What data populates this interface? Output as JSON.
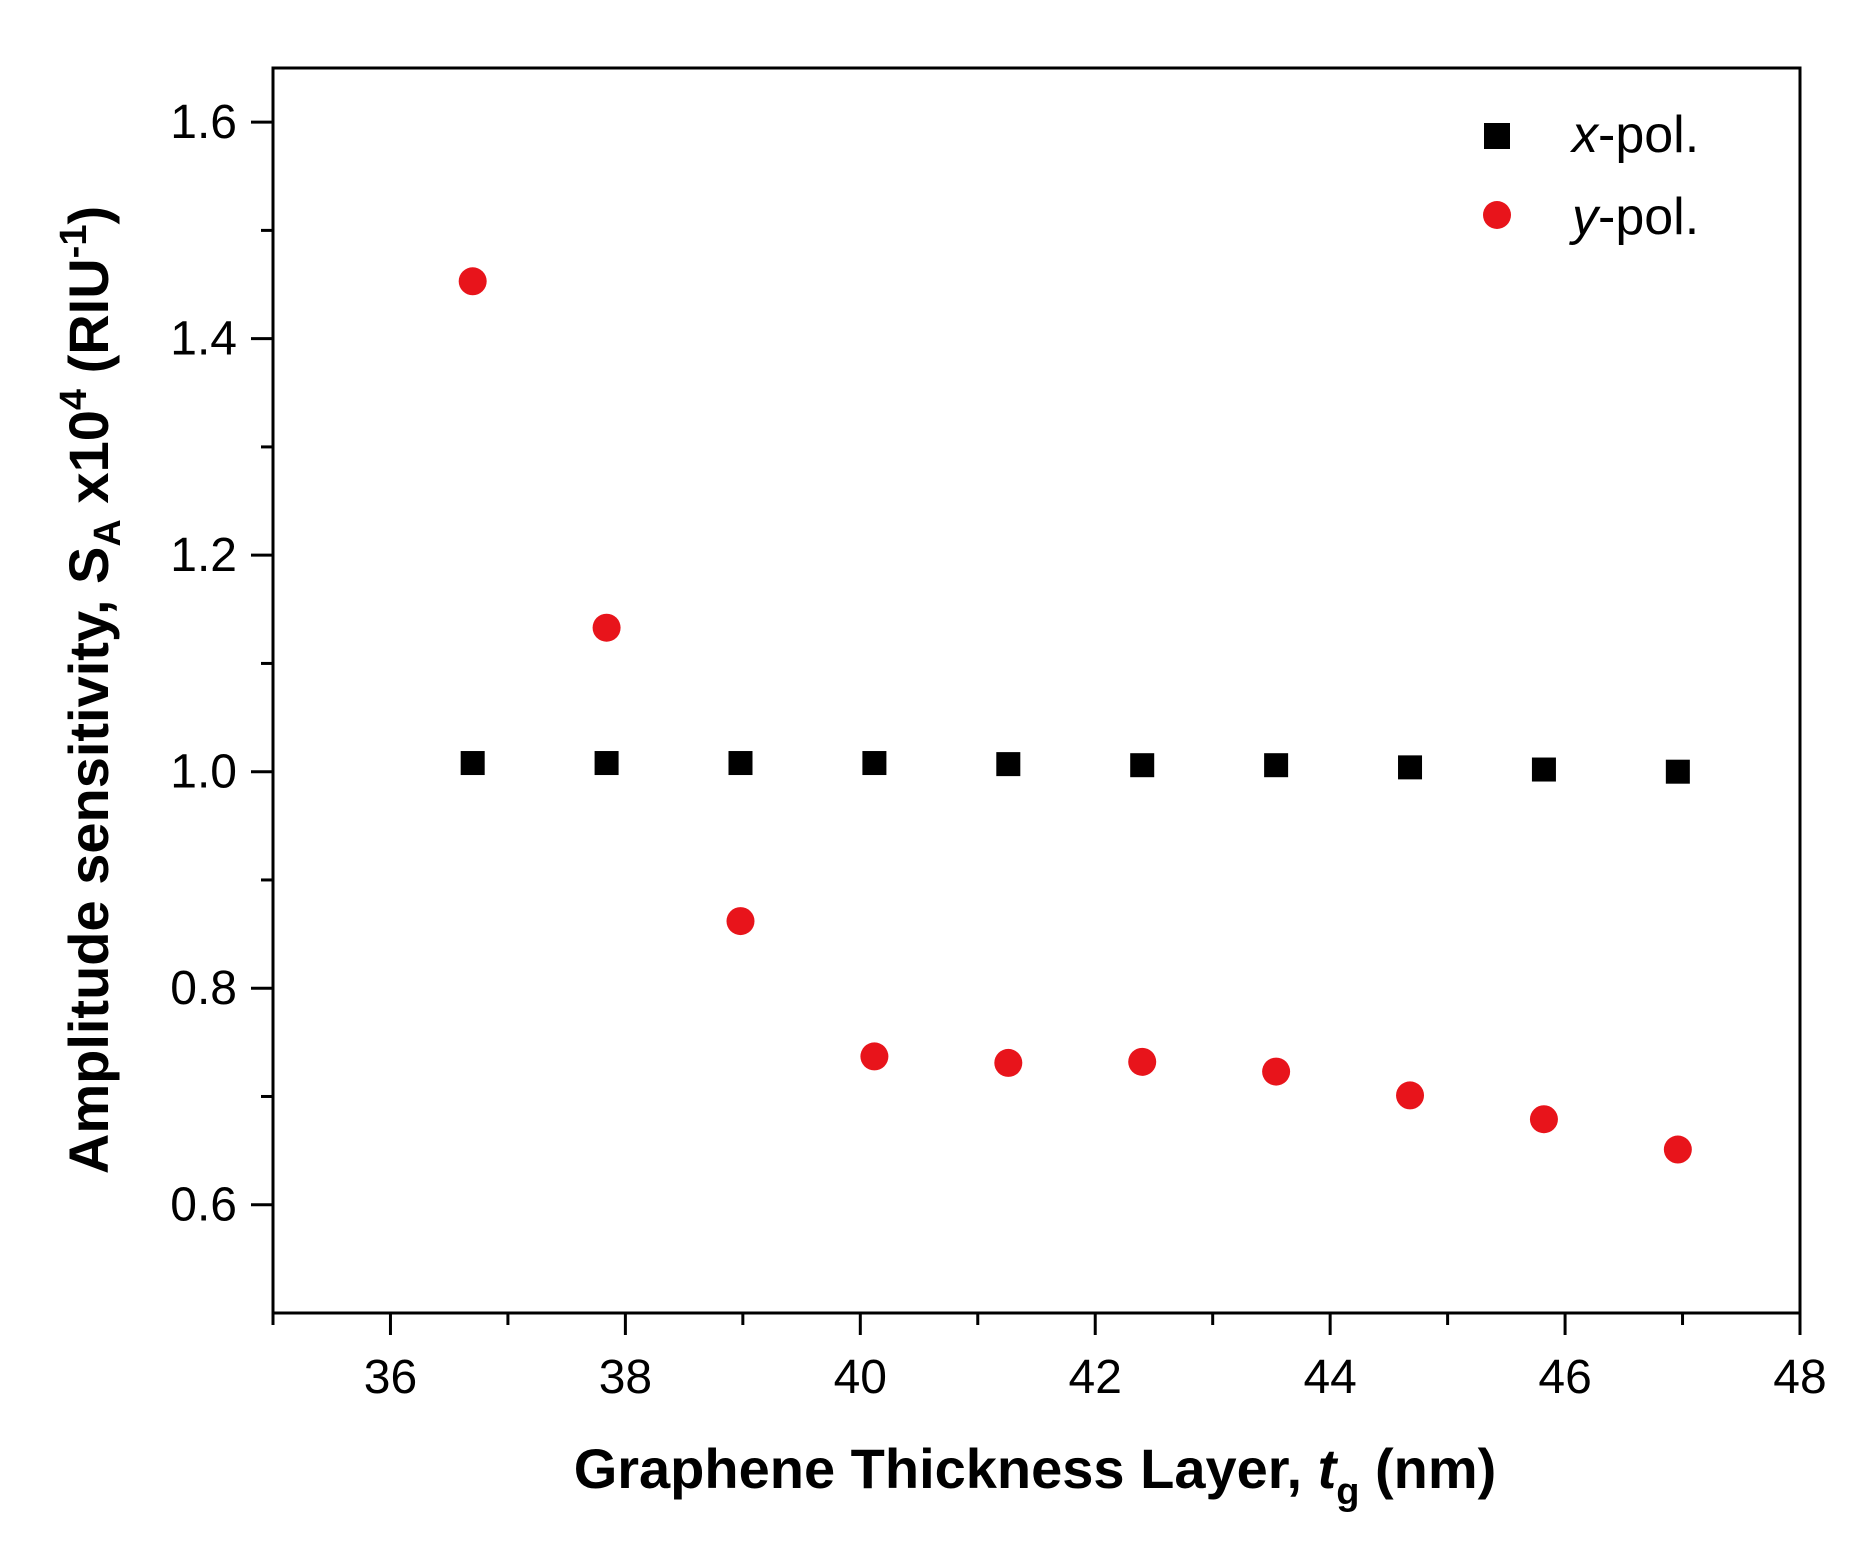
{
  "chart_data": {
    "type": "scatter",
    "title": "",
    "xlabel": {
      "main": "Graphene Thickness Layer, ",
      "var": "t",
      "sub": "g",
      "unit": " (nm)"
    },
    "ylabel": {
      "main": "Amplitude sensitivity, S",
      "sub": "A",
      "mid": " x10",
      "sup1": "4",
      "unit_open": " (RIU",
      "sup2": "-1",
      "unit_close": ")"
    },
    "xlim": [
      35,
      48
    ],
    "ylim": [
      0.5,
      1.65
    ],
    "xticks": [
      36,
      38,
      40,
      42,
      44,
      46,
      48
    ],
    "xtick_labels": [
      "36",
      "38",
      "40",
      "42",
      "44",
      "46",
      "48"
    ],
    "yticks": [
      0.6,
      0.8,
      1.0,
      1.2,
      1.4,
      1.6
    ],
    "ytick_labels": [
      "0.6",
      "0.8",
      "1.0",
      "1.2",
      "1.4",
      "1.6"
    ],
    "legend_position": "top-right",
    "grid": false,
    "series": [
      {
        "name_var": "x",
        "name_rest": "-pol.",
        "marker": "square",
        "color": "#000000",
        "x": [
          36.7,
          37.84,
          38.98,
          40.12,
          41.26,
          42.4,
          43.54,
          44.68,
          45.82,
          46.96
        ],
        "y": [
          1.008,
          1.008,
          1.008,
          1.008,
          1.007,
          1.006,
          1.006,
          1.004,
          1.002,
          1.0
        ]
      },
      {
        "name_var": "y",
        "name_rest": "-pol.",
        "marker": "circle",
        "color": "#e8141b",
        "x": [
          36.7,
          37.84,
          38.98,
          40.12,
          41.26,
          42.4,
          43.54,
          44.68,
          45.82,
          46.96
        ],
        "y": [
          1.453,
          1.133,
          0.862,
          0.737,
          0.731,
          0.732,
          0.723,
          0.701,
          0.679,
          0.651
        ]
      }
    ]
  }
}
